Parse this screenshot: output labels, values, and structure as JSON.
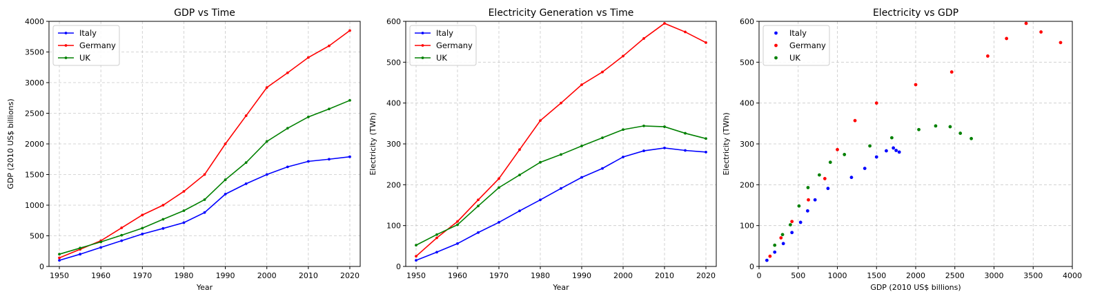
{
  "chart_data": [
    {
      "type": "line",
      "title": "GDP vs Time",
      "xlabel": "Year",
      "ylabel": "GDP (2010 US$ billions)",
      "xlim": [
        1947.5,
        2022.5
      ],
      "ylim": [
        0,
        4000
      ],
      "xticks": [
        1950,
        1960,
        1970,
        1980,
        1990,
        2000,
        2010,
        2020
      ],
      "yticks": [
        0,
        500,
        1000,
        1500,
        2000,
        2500,
        3000,
        3500,
        4000
      ],
      "grid": true,
      "legend": "top-left",
      "x": [
        1950,
        1955,
        1960,
        1965,
        1970,
        1975,
        1980,
        1985,
        1990,
        1995,
        2000,
        2005,
        2010,
        2015,
        2020
      ],
      "series": [
        {
          "name": "Italy",
          "color": "#0000ff",
          "values": [
            100,
            200,
            310,
            420,
            530,
            620,
            715,
            880,
            1180,
            1350,
            1500,
            1625,
            1715,
            1750,
            1790
          ]
        },
        {
          "name": "Germany",
          "color": "#ff0000",
          "values": [
            140,
            280,
            420,
            630,
            840,
            1000,
            1225,
            1500,
            2000,
            2460,
            2920,
            3160,
            3410,
            3600,
            3850
          ]
        },
        {
          "name": "UK",
          "color": "#008000",
          "values": [
            200,
            300,
            400,
            510,
            625,
            770,
            910,
            1090,
            1415,
            1695,
            2040,
            2255,
            2440,
            2570,
            2710
          ]
        }
      ]
    },
    {
      "type": "line",
      "title": "Electricity Generation vs Time",
      "xlabel": "Year",
      "ylabel": "Electricity (TWh)",
      "xlim": [
        1947.5,
        2022.5
      ],
      "ylim": [
        0,
        600
      ],
      "xticks": [
        1950,
        1960,
        1970,
        1980,
        1990,
        2000,
        2010,
        2020
      ],
      "yticks": [
        0,
        100,
        200,
        300,
        400,
        500,
        600
      ],
      "grid": true,
      "legend": "top-left",
      "x": [
        1950,
        1955,
        1960,
        1965,
        1970,
        1975,
        1980,
        1985,
        1990,
        1995,
        2000,
        2005,
        2010,
        2015,
        2020
      ],
      "series": [
        {
          "name": "Italy",
          "color": "#0000ff",
          "values": [
            15,
            35,
            56,
            83,
            108,
            136,
            163,
            191,
            218,
            240,
            268,
            283,
            290,
            284,
            280
          ]
        },
        {
          "name": "Germany",
          "color": "#ff0000",
          "values": [
            25,
            70,
            110,
            163,
            215,
            286,
            357,
            400,
            445,
            476,
            515,
            558,
            595,
            574,
            548
          ]
        },
        {
          "name": "UK",
          "color": "#008000",
          "values": [
            52,
            78,
            102,
            148,
            193,
            224,
            255,
            274,
            295,
            315,
            335,
            344,
            342,
            326,
            313
          ]
        }
      ]
    },
    {
      "type": "scatter",
      "title": "Electricity vs GDP",
      "xlabel": "GDP (2010 US$ billions)",
      "ylabel": "Electricity (TWh)",
      "xlim": [
        0,
        4000
      ],
      "ylim": [
        0,
        600
      ],
      "xticks": [
        0,
        500,
        1000,
        1500,
        2000,
        2500,
        3000,
        3500,
        4000
      ],
      "yticks": [
        0,
        100,
        200,
        300,
        400,
        500,
        600
      ],
      "grid": true,
      "legend": "top-left",
      "series": [
        {
          "name": "Italy",
          "color": "#0000ff",
          "x": [
            100,
            200,
            310,
            420,
            530,
            620,
            715,
            880,
            1180,
            1350,
            1500,
            1625,
            1715,
            1750,
            1790
          ],
          "y": [
            15,
            35,
            56,
            83,
            108,
            136,
            163,
            191,
            218,
            240,
            268,
            283,
            290,
            284,
            280
          ]
        },
        {
          "name": "Germany",
          "color": "#ff0000",
          "x": [
            140,
            280,
            420,
            630,
            840,
            1000,
            1225,
            1500,
            2000,
            2460,
            2920,
            3160,
            3410,
            3600,
            3850
          ],
          "y": [
            25,
            70,
            110,
            163,
            215,
            286,
            357,
            400,
            445,
            476,
            515,
            558,
            595,
            574,
            548
          ]
        },
        {
          "name": "UK",
          "color": "#008000",
          "x": [
            200,
            300,
            400,
            510,
            625,
            770,
            910,
            1090,
            1415,
            1695,
            2040,
            2255,
            2440,
            2570,
            2710
          ],
          "y": [
            52,
            78,
            102,
            148,
            193,
            224,
            255,
            274,
            295,
            315,
            335,
            344,
            342,
            326,
            313
          ]
        }
      ]
    }
  ]
}
